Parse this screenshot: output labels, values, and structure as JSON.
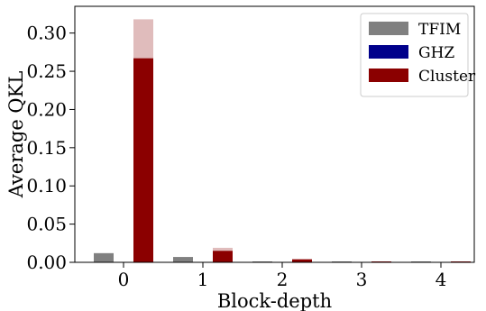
{
  "chart_data": {
    "type": "bar",
    "xlabel": "Block-depth",
    "ylabel": "Average QKL",
    "categories": [
      "0",
      "1",
      "2",
      "3",
      "4"
    ],
    "ylim": [
      0,
      0.335
    ],
    "yticks": [
      "0.00",
      "0.05",
      "0.10",
      "0.15",
      "0.20",
      "0.25",
      "0.30"
    ],
    "legend_position": "top-right",
    "series": [
      {
        "name": "TFIM",
        "color": "#808080",
        "light_color": "#d9d9d9",
        "values": [
          0.012,
          0.007,
          0.0005,
          0.0003,
          0.0002
        ],
        "upper": [
          0.012,
          0.007,
          0.0005,
          0.0003,
          0.0002
        ]
      },
      {
        "name": "GHZ",
        "color": "#00008b",
        "light_color": "#b3b3dc",
        "values": [
          0.0,
          0.0,
          0.0,
          0.0,
          0.0
        ],
        "upper": [
          0.0,
          0.0,
          0.0,
          0.0,
          0.0
        ]
      },
      {
        "name": "Cluster",
        "color": "#8b0000",
        "light_color": "#e0bcbc",
        "values": [
          0.267,
          0.015,
          0.004,
          0.001,
          0.001
        ],
        "upper": [
          0.318,
          0.019,
          0.004,
          0.001,
          0.001
        ]
      }
    ]
  }
}
